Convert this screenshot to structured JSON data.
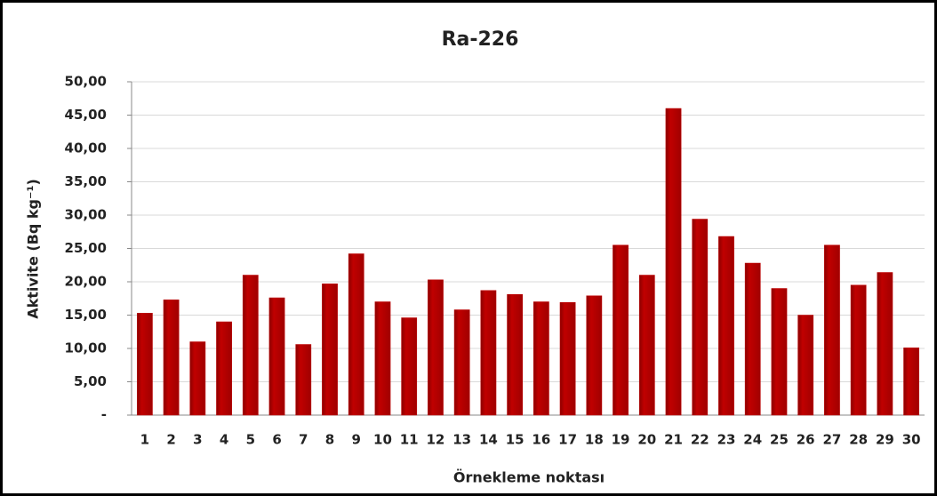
{
  "chart_data": {
    "type": "bar",
    "title": "Ra-226",
    "xlabel": "Örnekleme noktası",
    "ylabel": "Aktivite (Bq kg⁻¹)",
    "categories": [
      "1",
      "2",
      "3",
      "4",
      "5",
      "6",
      "7",
      "8",
      "9",
      "10",
      "11",
      "12",
      "13",
      "14",
      "15",
      "16",
      "17",
      "18",
      "19",
      "20",
      "21",
      "22",
      "23",
      "24",
      "25",
      "26",
      "27",
      "28",
      "29",
      "30"
    ],
    "values": [
      15.3,
      17.3,
      11.0,
      14.0,
      21.0,
      17.6,
      10.6,
      19.7,
      24.2,
      17.0,
      14.6,
      20.3,
      15.8,
      18.7,
      18.1,
      17.0,
      16.9,
      17.9,
      25.5,
      21.0,
      46.0,
      29.4,
      26.8,
      22.8,
      19.0,
      15.0,
      25.5,
      19.5,
      21.4,
      10.1
    ],
    "color": "#c00000",
    "ylim": [
      0,
      50
    ],
    "yticks": [
      {
        "value": 0,
        "label": "-"
      },
      {
        "value": 5,
        "label": "5,00"
      },
      {
        "value": 10,
        "label": "10,00"
      },
      {
        "value": 15,
        "label": "15,00"
      },
      {
        "value": 20,
        "label": "20,00"
      },
      {
        "value": 25,
        "label": "25,00"
      },
      {
        "value": 30,
        "label": "30,00"
      },
      {
        "value": 35,
        "label": "35,00"
      },
      {
        "value": 40,
        "label": "40,00"
      },
      {
        "value": 45,
        "label": "45,00"
      },
      {
        "value": 50,
        "label": "50,00"
      }
    ],
    "grid": true
  }
}
